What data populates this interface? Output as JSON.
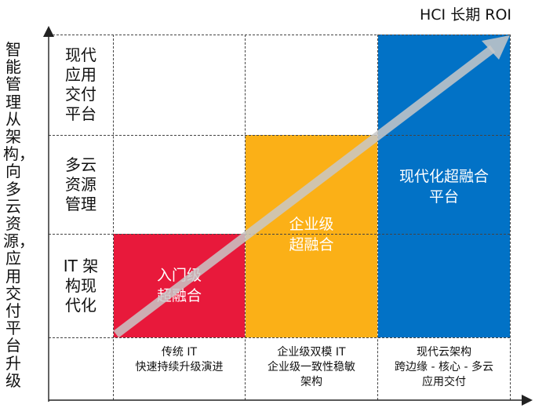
{
  "y_axis_label": "智能管理从架构，向多云资源，应用交付平台升级",
  "roi_title": "HCI 长期 ROI",
  "rows": [
    {
      "label": "现代应用交付平台"
    },
    {
      "label": "多云资源管理"
    },
    {
      "label": "IT 架构现代化"
    }
  ],
  "blocks": [
    {
      "text_lines": [
        "入门级",
        "超融合"
      ],
      "color": "#e8193b"
    },
    {
      "text_lines": [
        "企业级",
        "超融合"
      ],
      "color": "#fbb017"
    },
    {
      "text_lines": [
        "现代化超融合",
        "平台"
      ],
      "color": "#0272c6"
    }
  ],
  "columns": [
    {
      "label": "传统 IT\n快速持续升级演进"
    },
    {
      "label": "企业级双模 IT\n企业级一致性稳敏\n架构"
    },
    {
      "label": "现代云架构\n跨边缘 - 核心 - 多云\n应用交付"
    }
  ],
  "arrow_color": "#c8c8c8"
}
